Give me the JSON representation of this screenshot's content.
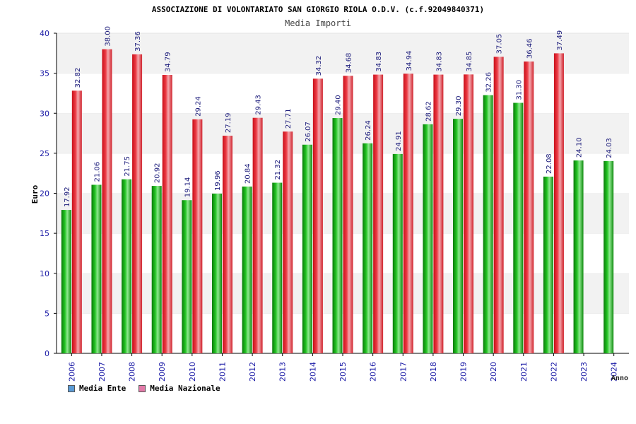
{
  "chart_data": {
    "type": "bar",
    "title": "ASSOCIAZIONE DI VOLONTARIATO SAN GIORGIO RIOLA O.D.V. (c.f.92049840371)",
    "subtitle": "Media Importi",
    "xlabel": "Anno",
    "ylabel": "Euro",
    "ylim": [
      0,
      40
    ],
    "yticks": [
      "0",
      "5",
      "10",
      "15",
      "20",
      "25",
      "30",
      "35",
      "40"
    ],
    "grid": "horizontal bands",
    "legend_position": "bottom-left",
    "categories": [
      "2006",
      "2007",
      "2008",
      "2009",
      "2010",
      "2011",
      "2012",
      "2013",
      "2014",
      "2015",
      "2016",
      "2017",
      "2018",
      "2019",
      "2020",
      "2021",
      "2022",
      "2023",
      "2024"
    ],
    "series": [
      {
        "name": "Media Ente",
        "color": "#1aaa1a",
        "values": [
          17.92,
          21.06,
          21.75,
          20.92,
          19.14,
          19.96,
          20.84,
          21.32,
          26.07,
          29.4,
          26.24,
          24.91,
          28.62,
          29.3,
          32.26,
          31.3,
          22.08,
          24.1,
          24.03
        ],
        "labels": [
          "17.92",
          "21.06",
          "21.75",
          "20.92",
          "19.14",
          "19.96",
          "20.84",
          "21.32",
          "26.07",
          "29.40",
          "26.24",
          "24.91",
          "28.62",
          "29.30",
          "32.26",
          "31.30",
          "22.08",
          "24.10",
          "24.03"
        ]
      },
      {
        "name": "Media Nazionale",
        "color": "#e8323c",
        "values": [
          32.82,
          38.0,
          37.36,
          34.79,
          29.24,
          27.19,
          29.43,
          27.71,
          34.32,
          34.68,
          34.83,
          34.94,
          34.83,
          34.85,
          37.05,
          36.46,
          37.49,
          null,
          null
        ],
        "labels": [
          "32.82",
          "38.00",
          "37.36",
          "34.79",
          "29.24",
          "27.19",
          "29.43",
          "27.71",
          "34.32",
          "34.68",
          "34.83",
          "34.94",
          "34.83",
          "34.85",
          "37.05",
          "36.46",
          "37.49",
          null,
          null
        ]
      }
    ],
    "legend": [
      {
        "label": "Media Ente",
        "color": "#5b9bd5"
      },
      {
        "label": "Media Nazionale",
        "color": "#e27aa8"
      }
    ]
  }
}
